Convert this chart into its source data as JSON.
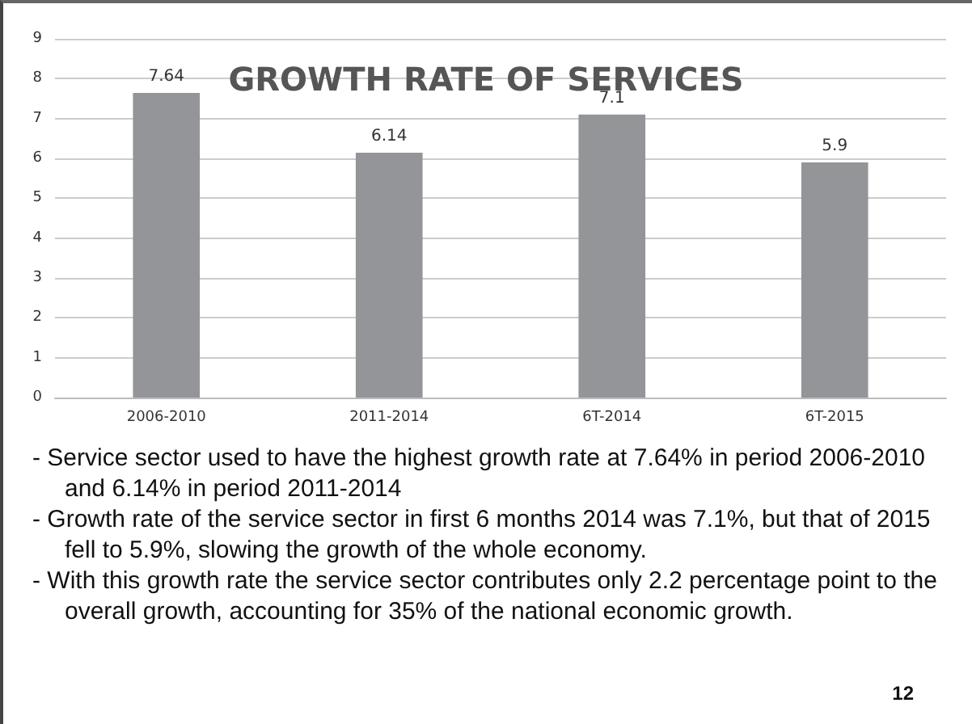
{
  "chart_data": {
    "type": "bar",
    "title": "GROWTH RATE OF SERVICES",
    "categories": [
      "2006-2010",
      "2011-2014",
      "6T-2014",
      "6T-2015"
    ],
    "values": [
      7.64,
      6.14,
      7.1,
      5.9
    ],
    "color": "#939598",
    "ylim": [
      0,
      9
    ],
    "yticks": [
      0,
      1,
      2,
      3,
      4,
      5,
      6,
      7,
      8,
      9
    ],
    "grid": "y",
    "data_labels": true,
    "annotations": [
      "- Service sector used to have the highest growth rate at 7.64% in period 2006-2010 and 6.14% in period 2011-2014",
      "- Growth rate of the service sector in first 6 months 2014 was 7.1%, but that of 2015 fell to 5.9%, slowing the growth of the whole economy.",
      "- With this growth rate the service sector contributes only 2.2 percentage point to the overall growth, accounting for 35% of the national economic growth.",
      "12"
    ]
  }
}
